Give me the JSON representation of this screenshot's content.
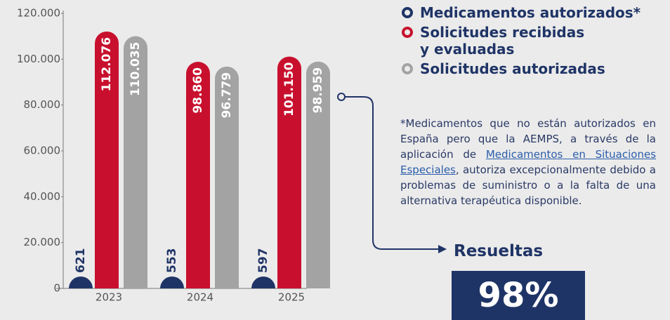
{
  "chart_data": {
    "type": "bar",
    "categories": [
      "2023",
      "2024",
      "2025"
    ],
    "series": [
      {
        "name": "Medicamentos autorizados*",
        "color": "#1f3466",
        "values": [
          621,
          553,
          597
        ]
      },
      {
        "name": "Solicitudes recibidas y evaluadas",
        "color": "#c8102e",
        "values": [
          112076,
          98860,
          101150
        ],
        "value_labels": [
          "112.076",
          "98.860",
          "101.150"
        ]
      },
      {
        "name": "Solicitudes autorizadas",
        "color": "#a3a3a3",
        "values": [
          110035,
          96779,
          98959
        ],
        "value_labels": [
          "110.035",
          "96.779",
          "98.959"
        ]
      }
    ],
    "ylim": [
      0,
      120000
    ],
    "yticks": [
      0,
      {
        "value": 20000,
        "label": "20.000"
      },
      {
        "value": 40000,
        "label": "40.000"
      },
      {
        "value": 60000,
        "label": "60.000"
      },
      {
        "value": 80000,
        "label": "80.000"
      },
      {
        "value": 100000,
        "label": "100.000"
      },
      {
        "value": 120000,
        "label": "120.000"
      }
    ],
    "note": {
      "before": "*Medicamentos que no están autorizados en España pero que la AEMPS, a través de la aplicación de ",
      "link": "Medicamentos en Situaciones Especiales",
      "after": ", autoriza excepcionalmente debido a problemas de suministro o a la falta de una alternativa terapéutica disponible."
    },
    "annotation": {
      "label": "Resueltas",
      "value": 98,
      "value_label": "98%"
    }
  }
}
